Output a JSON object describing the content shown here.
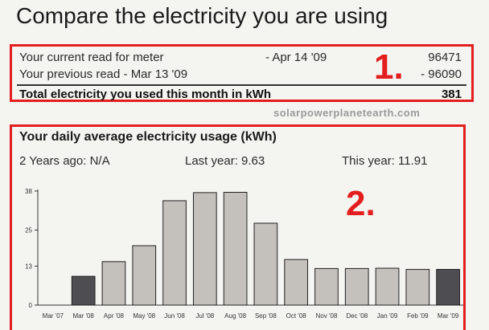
{
  "page": {
    "title": "Compare the electricity you are using"
  },
  "meter": {
    "current_label": "Your current read for meter",
    "current_date": "- Apr 14 '09",
    "current_value": "96471",
    "previous_label": "Your previous read - Mar 13 '09",
    "previous_value": "- 96090",
    "total_label": "Total electricity you used this month in kWh",
    "total_value": "381"
  },
  "callouts": {
    "one": "1.",
    "two": "2."
  },
  "watermark": "solarpowerplanetearth.com",
  "usage": {
    "title": "Your daily average electricity usage (kWh)",
    "two_years_ago": "2 Years ago: N/A",
    "last_year": "Last year: 9.63",
    "this_year": "This year: 11.91"
  },
  "chart_data": {
    "type": "bar",
    "title": "Your daily average electricity usage (kWh)",
    "categories": [
      "Mar '07",
      "Mar '08",
      "Apr '08",
      "May '08",
      "Jun '08",
      "Jul '08",
      "Aug '08",
      "Sep '08",
      "Oct '08",
      "Nov '08",
      "Dec '08",
      "Jan '09",
      "Feb '09",
      "Mar '09"
    ],
    "values": [
      0,
      9.6,
      14.5,
      19.8,
      34.8,
      37.5,
      37.6,
      27.3,
      15.2,
      12.2,
      12.2,
      12.3,
      11.9,
      11.9
    ],
    "highlighted": [
      "Mar '08",
      "Mar '09"
    ],
    "ylim": [
      0,
      38
    ],
    "yticks": [
      0,
      13,
      25,
      38
    ],
    "colors": {
      "bar": "#c4c0bc",
      "highlight": "#4e4e52",
      "stroke": "#222222"
    }
  }
}
